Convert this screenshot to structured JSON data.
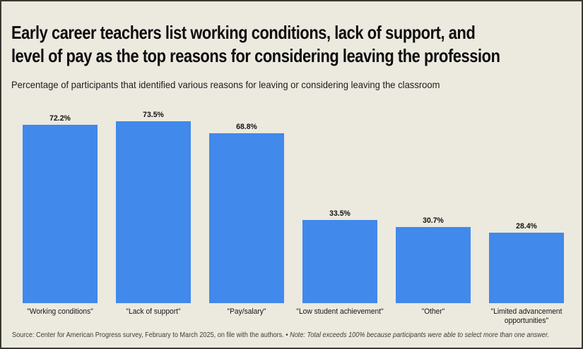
{
  "page": {
    "background_color": "#ECE9DF",
    "border_color": "#3A3A33"
  },
  "header": {
    "title_line1": "Early career teachers list working conditions, lack of support, and",
    "title_line2": "level of pay as the top reasons for considering leaving the profession",
    "subtitle": "Percentage of participants that identified various reasons for leaving or considering leaving the classroom"
  },
  "chart_data": {
    "type": "bar",
    "title": "Early career teachers list working conditions, lack of support, and level of pay as the top reasons for considering leaving the profession",
    "subtitle": "Percentage of participants that identified various reasons for leaving or considering leaving the classroom",
    "categories": [
      "\"Working conditions\"",
      "\"Lack of support\"",
      "\"Pay/salary\"",
      "\"Low student achievement\"",
      "\"Other\"",
      "\"Limited advancement opportunities\""
    ],
    "values": [
      72.2,
      73.5,
      68.8,
      33.5,
      30.7,
      28.4
    ],
    "value_labels": [
      "72.2%",
      "73.5%",
      "68.8%",
      "33.5%",
      "30.7%",
      "28.4%"
    ],
    "value_suffix": "%",
    "bar_color": "#4189EA",
    "xlabel": "",
    "ylabel": "",
    "ylim": [
      0,
      80
    ],
    "grid": false,
    "legend": false,
    "axis_lines": false,
    "data_labels_position": "above-bar"
  },
  "footer": {
    "source": "Source: Center for American Progress survey, February to March 2025, on file with the authors.",
    "separator": "•",
    "note": "Note: Total exceeds 100% because participants were able to select more than one answer."
  }
}
